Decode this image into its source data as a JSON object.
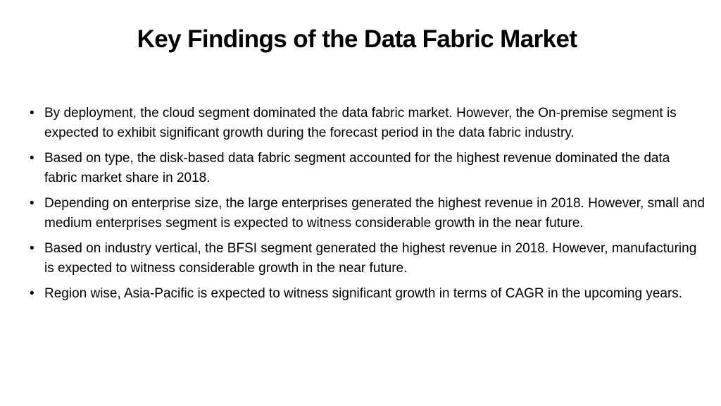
{
  "slide": {
    "title": "Key Findings of the Data Fabric Market",
    "bullet_marker": "•",
    "bullets": [
      "By deployment, the cloud segment dominated the data fabric market. However, the On-premise segment is expected to exhibit significant growth during the forecast period in the data fabric industry.",
      "Based on type, the disk-based data fabric segment accounted for the highest revenue dominated the data fabric market share in 2018.",
      "Depending on enterprise size, the large enterprises generated the highest revenue in 2018. However, small and medium enterprises segment is expected to witness considerable growth in the near future.",
      "Based on industry vertical, the BFSI segment generated the highest revenue in 2018. However, manufacturing is expected to witness considerable growth in the near future.",
      "Region wise, Asia-Pacific is expected to witness significant growth in terms of CAGR in the upcoming years."
    ]
  }
}
